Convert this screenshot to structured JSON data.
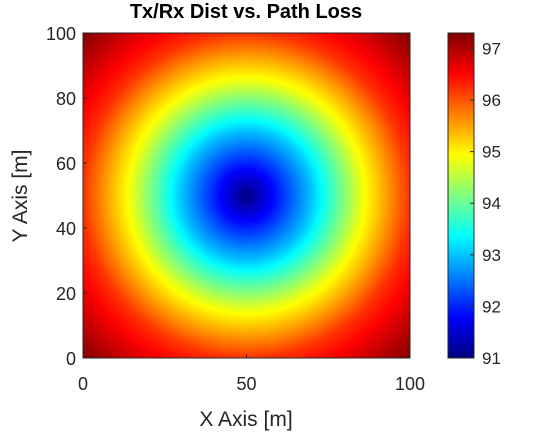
{
  "chart_data": {
    "type": "heatmap",
    "title": "Tx/Rx Dist vs. Path Loss",
    "xlabel": "X Axis [m]",
    "ylabel": "Y Axis [m]",
    "xlim": [
      0,
      100
    ],
    "ylim": [
      0,
      100
    ],
    "xticks": [
      "0",
      "50",
      "100"
    ],
    "yticks": [
      "0",
      "20",
      "40",
      "60",
      "80",
      "100"
    ],
    "grid": false,
    "colormap": "jet",
    "center": {
      "x": 50,
      "y": 50
    },
    "value_range": [
      91,
      97.3
    ],
    "colorbar": {
      "ticks": [
        "91",
        "92",
        "93",
        "94",
        "95",
        "96",
        "97"
      ],
      "range": [
        91,
        97.3
      ]
    },
    "corner_value": 97.3,
    "description_values": [
      {
        "distance_from_center": 0,
        "path_loss": 91
      },
      {
        "distance_from_center": 20,
        "path_loss": 93
      },
      {
        "distance_from_center": 35,
        "path_loss": 94.8
      },
      {
        "distance_from_center": 50,
        "path_loss": 96.2
      },
      {
        "distance_from_center": 70.7,
        "path_loss": 97.3
      }
    ]
  }
}
